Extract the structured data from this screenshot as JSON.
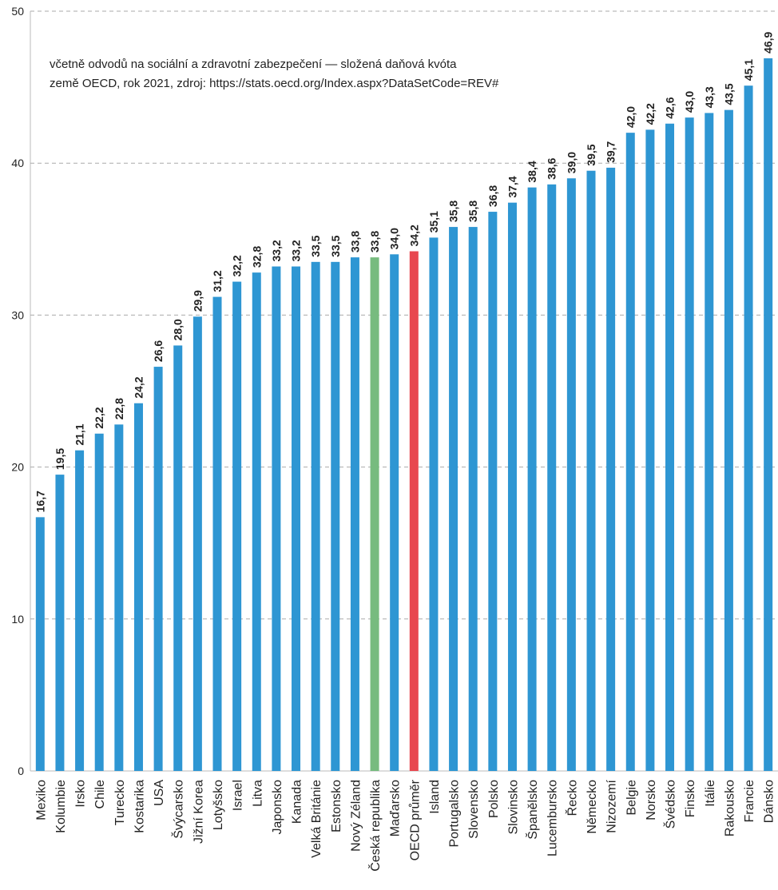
{
  "chart_data": {
    "type": "bar",
    "annotations": [
      "včetně odvodů na sociální a zdravotní zabezpečení — složená daňová kvóta",
      "země OECD, rok 2021, zdroj: https://stats.oecd.org/Index.aspx?DataSetCode=REV#"
    ],
    "categories": [
      "Mexiko",
      "Kolumbie",
      "Irsko",
      "Chile",
      "Turecko",
      "Kostarika",
      "USA",
      "Švýcarsko",
      "Jižní Korea",
      "Lotyšsko",
      "Israel",
      "Litva",
      "Japonsko",
      "Kanada",
      "Velká Británie",
      "Estonsko",
      "Nový Zéland",
      "Česká republika",
      "Maďarsko",
      "OECD průměr",
      "Island",
      "Portugalsko",
      "Slovensko",
      "Polsko",
      "Slovinsko",
      "Španělsko",
      "Lucembursko",
      "Řecko",
      "Německo",
      "Nizozemí",
      "Belgie",
      "Norsko",
      "Švédsko",
      "Finsko",
      "Itálie",
      "Rakousko",
      "Francie",
      "Dánsko"
    ],
    "values": [
      16.7,
      19.5,
      21.1,
      22.2,
      22.8,
      24.2,
      26.6,
      28.0,
      29.9,
      31.2,
      32.2,
      32.8,
      33.2,
      33.2,
      33.5,
      33.5,
      33.8,
      33.8,
      34.0,
      34.2,
      35.1,
      35.8,
      35.8,
      36.8,
      37.4,
      38.4,
      38.6,
      39.0,
      39.5,
      39.7,
      42.0,
      42.2,
      42.6,
      43.0,
      43.3,
      43.5,
      45.1,
      46.9
    ],
    "value_labels": [
      "16,7",
      "19,5",
      "21,1",
      "22,2",
      "22,8",
      "24,2",
      "26,6",
      "28,0",
      "29,9",
      "31,2",
      "32,2",
      "32,8",
      "33,2",
      "33,2",
      "33,5",
      "33,5",
      "33,8",
      "33,8",
      "34,0",
      "34,2",
      "35,1",
      "35,8",
      "35,8",
      "36,8",
      "37,4",
      "38,4",
      "38,6",
      "39,0",
      "39,5",
      "39,7",
      "42,0",
      "42,2",
      "42,6",
      "43,0",
      "43,3",
      "43,5",
      "45,1",
      "46,9"
    ],
    "colors": [
      "#2e96d3",
      "#2e96d3",
      "#2e96d3",
      "#2e96d3",
      "#2e96d3",
      "#2e96d3",
      "#2e96d3",
      "#2e96d3",
      "#2e96d3",
      "#2e96d3",
      "#2e96d3",
      "#2e96d3",
      "#2e96d3",
      "#2e96d3",
      "#2e96d3",
      "#2e96d3",
      "#2e96d3",
      "#77bb7f",
      "#2e96d3",
      "#e8474f",
      "#2e96d3",
      "#2e96d3",
      "#2e96d3",
      "#2e96d3",
      "#2e96d3",
      "#2e96d3",
      "#2e96d3",
      "#2e96d3",
      "#2e96d3",
      "#2e96d3",
      "#2e96d3",
      "#2e96d3",
      "#2e96d3",
      "#2e96d3",
      "#2e96d3",
      "#2e96d3",
      "#2e96d3",
      "#2e96d3"
    ],
    "ylim": [
      0,
      50
    ],
    "yticks": [
      0,
      10,
      20,
      30,
      40,
      50
    ],
    "grid": true
  }
}
